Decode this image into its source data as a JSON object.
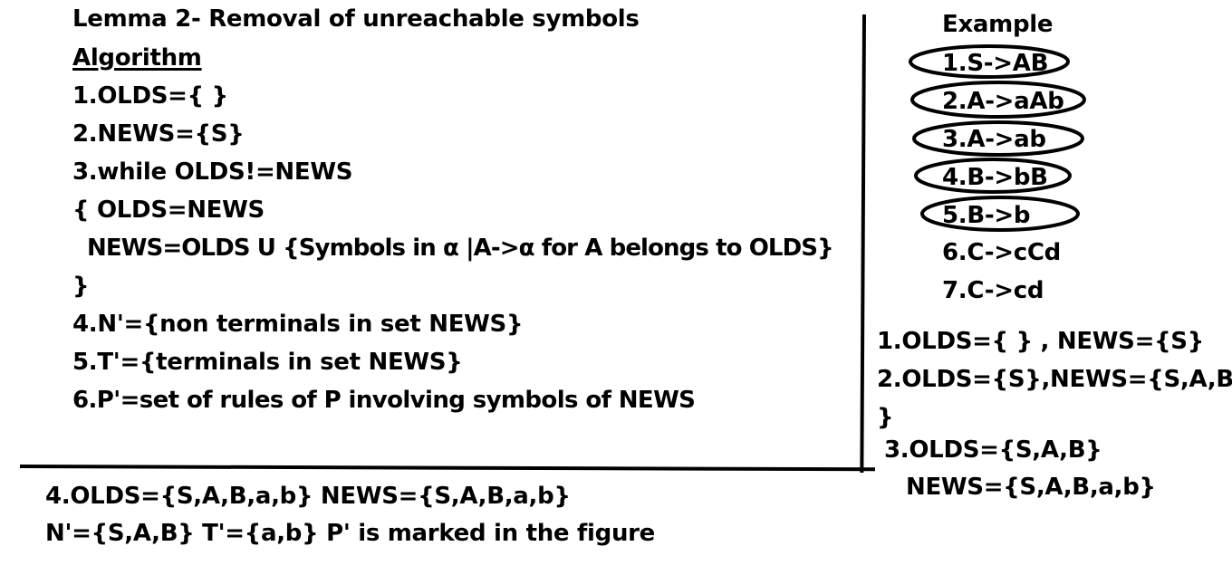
{
  "algorithm": {
    "title": "Lemma 2- Removal of unreachable symbols",
    "heading": "Algorithm",
    "steps": [
      "1.OLDS={ }",
      "2.NEWS={S}",
      "3.while OLDS!=NEWS",
      "{ OLDS=NEWS",
      "NEWS=OLDS U {Symbols in α |A->α for A belongs to OLDS}",
      "}",
      "4.N'={non terminals in set NEWS}",
      "5.T'={terminals in set NEWS}",
      "6.P'=set of rules of P involving symbols of NEWS"
    ]
  },
  "example": {
    "heading": "Example",
    "productions": [
      {
        "text": "1.S->AB",
        "circled": true
      },
      {
        "text": "2.A->aAb",
        "circled": true
      },
      {
        "text": "3.A->ab",
        "circled": true
      },
      {
        "text": "4.B->bB",
        "circled": true
      },
      {
        "text": "5.B->b",
        "circled": true
      },
      {
        "text": "6.C->cCd",
        "circled": false
      },
      {
        "text": "7.C->cd",
        "circled": false
      }
    ],
    "trace": [
      "1.OLDS={ } , NEWS={S}",
      "2.OLDS={S},NEWS={S,A,B",
      "}",
      "3.OLDS={S,A,B}",
      "NEWS={S,A,B,a,b}"
    ]
  },
  "result": {
    "lines": [
      "4.OLDS={S,A,B,a,b} NEWS={S,A,B,a,b}",
      "N'={S,A,B} T'={a,b} P' is marked in the figure"
    ]
  }
}
